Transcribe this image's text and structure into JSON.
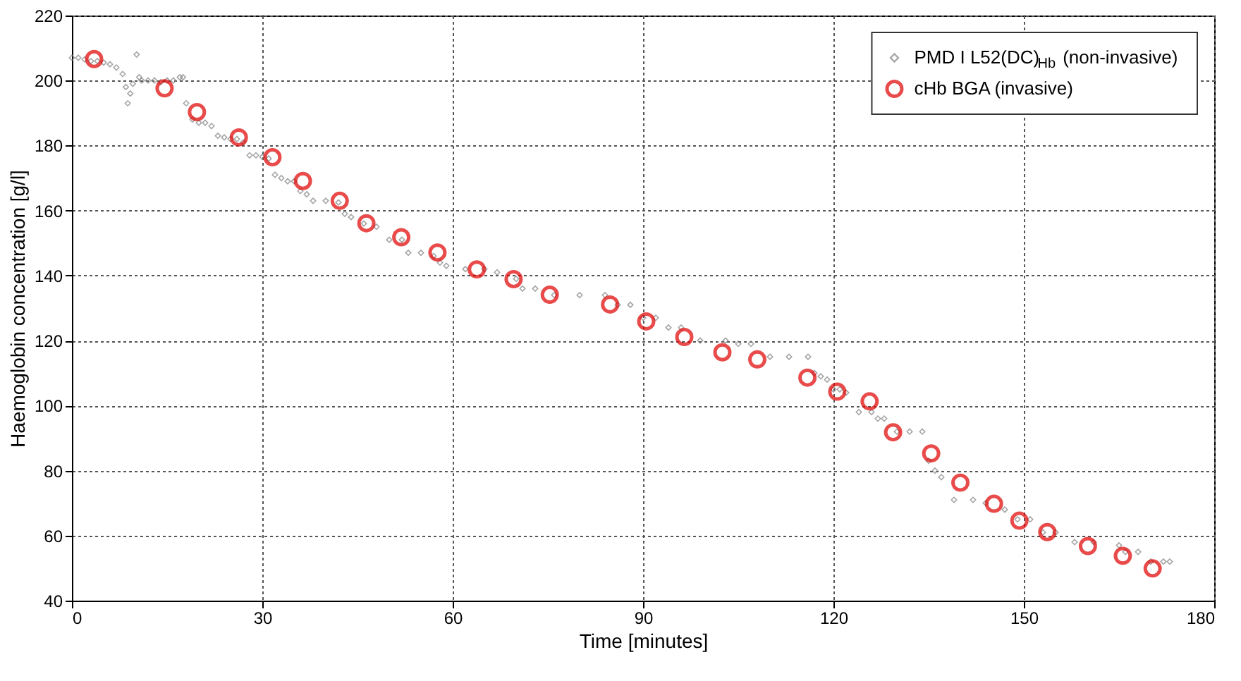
{
  "chart_data": {
    "type": "scatter",
    "xlabel": "Time [minutes]",
    "ylabel": "Haemoglobin concentration [g/l]",
    "xlim": [
      0,
      180
    ],
    "xticks": [
      0,
      30,
      60,
      90,
      120,
      150,
      180
    ],
    "ylim": [
      40,
      220
    ],
    "yticks": [
      40,
      60,
      80,
      100,
      120,
      140,
      160,
      180,
      200,
      220
    ],
    "grid": true,
    "legend": "top right",
    "series": [
      {
        "name": "PMD I L52(DC)$_{Hb}$ (non-invasive)",
        "color": "#808080",
        "marker": "diamond",
        "x": [
          0,
          1,
          2,
          3,
          4,
          5,
          6,
          7,
          8,
          8.5,
          8.8,
          9.2,
          9.6,
          10.2,
          10.6,
          11,
          12,
          13,
          14,
          15,
          16,
          17,
          17.5,
          18,
          19,
          20,
          21,
          22,
          23,
          24,
          25,
          26,
          27,
          28,
          29,
          30,
          31,
          32,
          33,
          34,
          35,
          36,
          37,
          38,
          40,
          42,
          43,
          44,
          46,
          48,
          50,
          52,
          53,
          55,
          57,
          58,
          59,
          62,
          65,
          67,
          70,
          71,
          73,
          76,
          80,
          84,
          86,
          88,
          90,
          92,
          94,
          96,
          99,
          103,
          105,
          107,
          110,
          113,
          116,
          117,
          118,
          119,
          120,
          121,
          122,
          124,
          126,
          127,
          128,
          130,
          132,
          134,
          135,
          136,
          137,
          139,
          142,
          144,
          147,
          149,
          151,
          153,
          155,
          158,
          161,
          165,
          166,
          168,
          170,
          172,
          173
        ],
        "values": [
          207,
          207,
          206.5,
          206,
          206,
          205.5,
          205,
          204,
          202,
          198,
          193,
          196,
          199,
          208,
          201,
          200,
          200,
          200,
          199.5,
          200,
          200,
          201,
          201,
          193,
          188,
          187,
          187,
          186,
          183,
          182.5,
          182,
          182,
          181,
          177,
          177,
          176.5,
          176,
          171,
          170,
          169,
          169,
          166,
          165,
          163,
          163,
          162.5,
          159,
          158,
          156,
          155,
          151,
          151,
          147,
          147,
          146,
          144,
          143,
          142,
          142,
          141,
          139,
          136,
          136,
          134,
          134,
          134,
          131,
          131,
          127,
          127,
          124,
          124,
          120,
          120,
          119,
          119,
          115,
          115,
          115,
          110,
          109,
          108,
          105,
          105,
          104,
          98,
          98,
          96,
          96,
          92,
          92,
          92,
          83,
          80,
          78,
          71,
          71,
          70,
          68,
          65,
          65,
          61,
          61,
          58,
          58,
          57,
          55,
          55,
          52,
          52,
          52
        ]
      },
      {
        "name": "cHb BGA (invasive)",
        "color": "#e00000",
        "marker": "circle",
        "x": [
          3.5,
          14.6,
          19.7,
          26.3,
          31.6,
          36.4,
          42.2,
          46.4,
          51.9,
          57.6,
          63.8,
          69.6,
          75.3,
          84.8,
          90.5,
          96.5,
          102.5,
          108,
          115.9,
          120.6,
          125.7,
          129.4,
          135.4,
          140,
          145.3,
          149.3,
          153.7,
          160.1,
          165.6,
          170.3
        ],
        "values": [
          206.6,
          197.6,
          190.3,
          182.5,
          176.4,
          169.1,
          163,
          156.1,
          151.8,
          147.1,
          141.9,
          138.9,
          134.1,
          131.1,
          125.9,
          121.1,
          116.4,
          114.2,
          108.6,
          104.3,
          101.3,
          91.8,
          85.3,
          76.3,
          69.8,
          64.6,
          61.1,
          56.8,
          53.8,
          49.9
        ]
      }
    ]
  }
}
